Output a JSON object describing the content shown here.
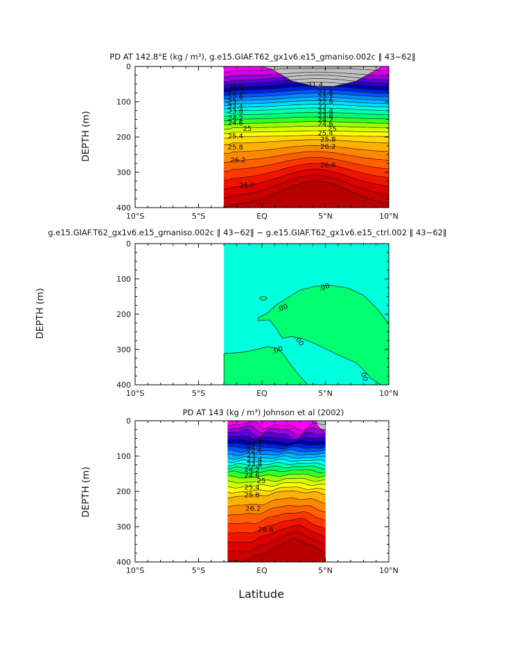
{
  "figure": {
    "xlabel": "Latitude",
    "ylabel": "DEPTH (m)"
  },
  "band_colors": [
    "#ff00ff",
    "#d800e6",
    "#9b00de",
    "#5a00d8",
    "#2a00c8",
    "#0000a8",
    "#0022dd",
    "#0055ff",
    "#008cff",
    "#00b4ff",
    "#00dcff",
    "#00ffee",
    "#00ffb4",
    "#00ff70",
    "#30ff30",
    "#9bff00",
    "#d4ff00",
    "#ffff00",
    "#ffd800",
    "#ffb000",
    "#ff8800",
    "#ff6000",
    "#ff3800",
    "#f01400",
    "#dd0000",
    "#cc0000",
    "#b80000"
  ],
  "chart_data": [
    {
      "type": "contour",
      "title": "PD AT 142.8°E (kg / m³), g.e15.GIAF.T62_gx1v6.e15_gmaniso.002c ‖ 43−62‖",
      "ylabel": "DEPTH (m)",
      "xlabel": "",
      "xlim": [
        -10,
        10
      ],
      "ylim": [
        400,
        0
      ],
      "x_ticks": [
        -10,
        -5,
        0,
        5,
        10
      ],
      "x_tick_labels": [
        "10°S",
        "5°S",
        "EQ",
        "5°N",
        "10°N"
      ],
      "y_ticks": [
        0,
        100,
        200,
        300,
        400
      ],
      "y_tick_labels": [
        "0",
        "100",
        "200",
        "300",
        "400"
      ],
      "data_xrange": [
        -3,
        10
      ],
      "land_mask": [
        [
          0,
          0
        ],
        [
          0.8,
          8
        ],
        [
          2.4,
          42
        ],
        [
          4.4,
          58
        ],
        [
          5.6,
          57
        ],
        [
          7.4,
          42
        ],
        [
          9.0,
          10
        ],
        [
          9.5,
          0
        ]
      ],
      "contour_levels": [
        "21.4",
        "21.8",
        "22.2",
        "22.6",
        "23",
        "23.4",
        "23.8",
        "24.2",
        "24.6",
        "25",
        "25.4",
        "25.8",
        "26.2",
        "26.6"
      ],
      "labels_left": [
        {
          "text": "21.8",
          "x": -2.7,
          "y": 58
        },
        {
          "text": "22.2",
          "x": -2.7,
          "y": 73
        },
        {
          "text": "22.6",
          "x": -2.7,
          "y": 86
        },
        {
          "text": "23",
          "x": -2.7,
          "y": 100
        },
        {
          "text": "23.4",
          "x": -2.7,
          "y": 113
        },
        {
          "text": "23.8",
          "x": -2.7,
          "y": 126
        },
        {
          "text": "24.2",
          "x": -2.7,
          "y": 146
        },
        {
          "text": "24.6",
          "x": -2.7,
          "y": 160
        },
        {
          "text": "25",
          "x": -1.5,
          "y": 175
        },
        {
          "text": "25.4",
          "x": -2.7,
          "y": 197
        },
        {
          "text": "25.8",
          "x": -2.7,
          "y": 228
        },
        {
          "text": "26.2",
          "x": -2.5,
          "y": 265
        },
        {
          "text": "26.6",
          "x": -1.8,
          "y": 336
        }
      ],
      "labels_right": [
        {
          "text": "21.4",
          "x": 3.6,
          "y": 52
        },
        {
          "text": "21.8",
          "x": 4.4,
          "y": 74
        },
        {
          "text": "22.2",
          "x": 4.4,
          "y": 87
        },
        {
          "text": "22.6",
          "x": 4.4,
          "y": 100
        },
        {
          "text": "23",
          "x": 4.4,
          "y": 113
        },
        {
          "text": "23.4",
          "x": 4.4,
          "y": 126
        },
        {
          "text": "23.8",
          "x": 4.4,
          "y": 139
        },
        {
          "text": "24.2",
          "x": 4.4,
          "y": 151
        },
        {
          "text": "24.6",
          "x": 4.4,
          "y": 163
        },
        {
          "text": "25",
          "x": 5.2,
          "y": 176
        },
        {
          "text": "25.4",
          "x": 4.4,
          "y": 188
        },
        {
          "text": "25.8",
          "x": 4.6,
          "y": 206
        },
        {
          "text": "26.2",
          "x": 4.6,
          "y": 226
        },
        {
          "text": "26.6",
          "x": 4.6,
          "y": 278
        }
      ]
    },
    {
      "type": "contour",
      "title": "g.e15.GIAF.T62_gx1v6.e15_gmaniso.002c ‖ 43−62‖  −  g.e15.GIAF.T62_gx1v6.e15_ctrl.002 ‖ 43−62‖",
      "ylabel": "DEPTH (m)",
      "xlabel": "",
      "xlim": [
        -10,
        10
      ],
      "ylim": [
        400,
        0
      ],
      "x_ticks": [
        -10,
        -5,
        0,
        5,
        10
      ],
      "x_tick_labels": [
        "10°S",
        "5°S",
        "EQ",
        "5°N",
        "10°N"
      ],
      "y_ticks": [
        0,
        100,
        200,
        300,
        400
      ],
      "y_tick_labels": [
        "0",
        "100",
        "200",
        "300",
        "400"
      ],
      "data_xrange": [
        -3,
        10
      ],
      "colors": {
        "negative": "#00ffdd",
        "positive": "#00ff70"
      },
      "contour_labels": [
        {
          "text": ".00",
          "x": 1.2,
          "y": 187
        },
        {
          "text": ".00",
          "x": 4.5,
          "y": 128
        },
        {
          "text": ".00",
          "x": 2.7,
          "y": 262
        },
        {
          "text": ".00",
          "x": 0.8,
          "y": 306
        },
        {
          "text": ".00",
          "x": 7.9,
          "y": 360
        }
      ]
    },
    {
      "type": "contour",
      "title": "PD AT 143 (kg / m³) Johnson et al (2002)",
      "ylabel": "DEPTH (m)",
      "xlabel": "Latitude",
      "xlim": [
        -10,
        10
      ],
      "ylim": [
        400,
        0
      ],
      "x_ticks": [
        -10,
        -5,
        0,
        5,
        10
      ],
      "x_tick_labels": [
        "10°S",
        "5°S",
        "EQ",
        "5°N",
        "10°N"
      ],
      "y_ticks": [
        0,
        100,
        200,
        300,
        400
      ],
      "y_tick_labels": [
        "0",
        "100",
        "200",
        "300",
        "400"
      ],
      "data_xrange": [
        -2.7,
        5
      ],
      "contour_levels": [
        "21.8",
        "22.2",
        "22.6",
        "23",
        "23.4",
        "23.8",
        "24.2",
        "24.6",
        "25",
        "25.4",
        "25.8",
        "26.2",
        "26.6"
      ],
      "labels": [
        {
          "text": "21.8",
          "x": -1.2,
          "y": 58
        },
        {
          "text": "22.2",
          "x": -1.2,
          "y": 72
        },
        {
          "text": "22.6",
          "x": -1.2,
          "y": 84
        },
        {
          "text": "23",
          "x": -1.2,
          "y": 97
        },
        {
          "text": "23.4",
          "x": -1.2,
          "y": 110
        },
        {
          "text": "23.8",
          "x": -1.2,
          "y": 124
        },
        {
          "text": "24.2",
          "x": -1.4,
          "y": 138
        },
        {
          "text": "24.6",
          "x": -1.4,
          "y": 155
        },
        {
          "text": "25",
          "x": -0.4,
          "y": 170
        },
        {
          "text": "25.4",
          "x": -1.4,
          "y": 188
        },
        {
          "text": "25.8",
          "x": -1.4,
          "y": 210
        },
        {
          "text": "26.2",
          "x": -1.3,
          "y": 248
        },
        {
          "text": "26.6",
          "x": -0.3,
          "y": 308
        }
      ]
    }
  ]
}
